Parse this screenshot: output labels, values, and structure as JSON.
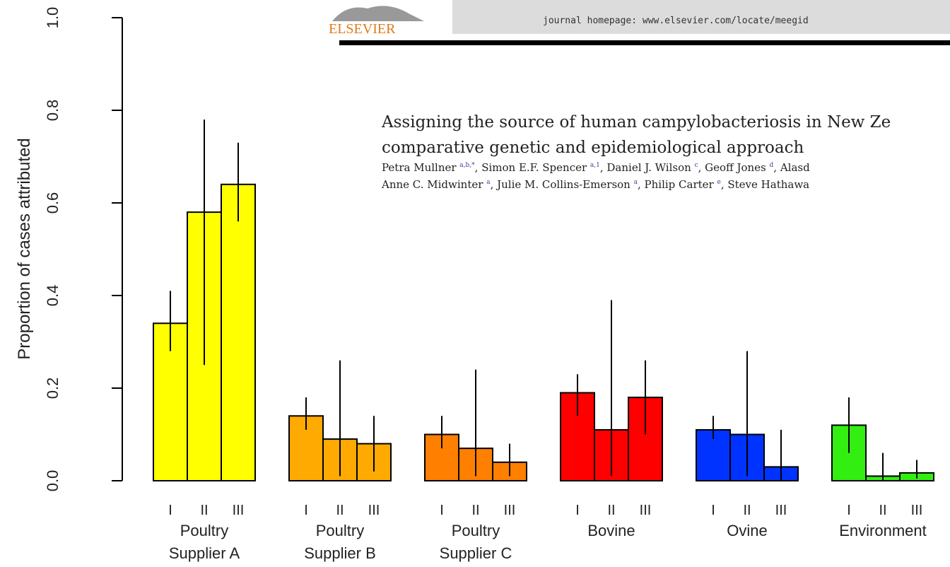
{
  "header": {
    "logo": "ELSEVIER",
    "homepage": "journal homepage: www.elsevier.com/locate/meegid",
    "title_lines": [
      "Assigning the source of human campylobacteriosis in New Ze",
      "comparative genetic and epidemiological approach"
    ],
    "author_lines": [
      [
        "Petra Mullner ",
        "a,b,*",
        ", Simon E.F. Spencer ",
        "a,1",
        ", Daniel J. Wilson ",
        "c",
        ", Geoff Jones ",
        "d",
        ", Alasd"
      ],
      [
        "Anne C. Midwinter ",
        "a",
        ", Julie M. Collins-Emerson ",
        "a",
        ", Philip Carter ",
        "e",
        ", Steve Hathawa"
      ]
    ]
  },
  "chart_data": {
    "type": "bar",
    "y_label": "Proportion of cases attributed",
    "subcategories": [
      "I",
      "II",
      "III"
    ],
    "groups": [
      {
        "name": [
          "Poultry",
          "Supplier A"
        ],
        "color": "#ffff00",
        "values": [
          0.34,
          0.58,
          0.64
        ],
        "lower": [
          0.28,
          0.25,
          0.56
        ],
        "upper": [
          0.41,
          0.78,
          0.73
        ]
      },
      {
        "name": [
          "Poultry",
          "Supplier B"
        ],
        "color": "#ffaa00",
        "values": [
          0.14,
          0.09,
          0.08
        ],
        "lower": [
          0.11,
          0.01,
          0.02
        ],
        "upper": [
          0.18,
          0.26,
          0.14
        ]
      },
      {
        "name": [
          "Poultry",
          "Supplier C"
        ],
        "color": "#ff7f00",
        "values": [
          0.1,
          0.07,
          0.04
        ],
        "lower": [
          0.07,
          0.01,
          0.01
        ],
        "upper": [
          0.14,
          0.24,
          0.08
        ]
      },
      {
        "name": [
          "Bovine"
        ],
        "color": "#ff0000",
        "values": [
          0.19,
          0.11,
          0.18
        ],
        "lower": [
          0.14,
          0.01,
          0.1
        ],
        "upper": [
          0.23,
          0.39,
          0.26
        ]
      },
      {
        "name": [
          "Ovine"
        ],
        "color": "#0033ff",
        "values": [
          0.11,
          0.1,
          0.03
        ],
        "lower": [
          0.09,
          0.01,
          0.0
        ],
        "upper": [
          0.14,
          0.28,
          0.11
        ]
      },
      {
        "name": [
          "Environment"
        ],
        "color": "#33ee11",
        "values": [
          0.12,
          0.01,
          0.017
        ],
        "lower": [
          0.06,
          0.0,
          0.005
        ],
        "upper": [
          0.18,
          0.06,
          0.045
        ]
      }
    ],
    "ylim": [
      0,
      1.0
    ],
    "yticks": [
      {
        "value": 0,
        "label": "0.0"
      },
      0.2,
      0.4,
      0.6,
      0.8,
      {
        "value": 1.0,
        "label": "1.0"
      }
    ]
  }
}
